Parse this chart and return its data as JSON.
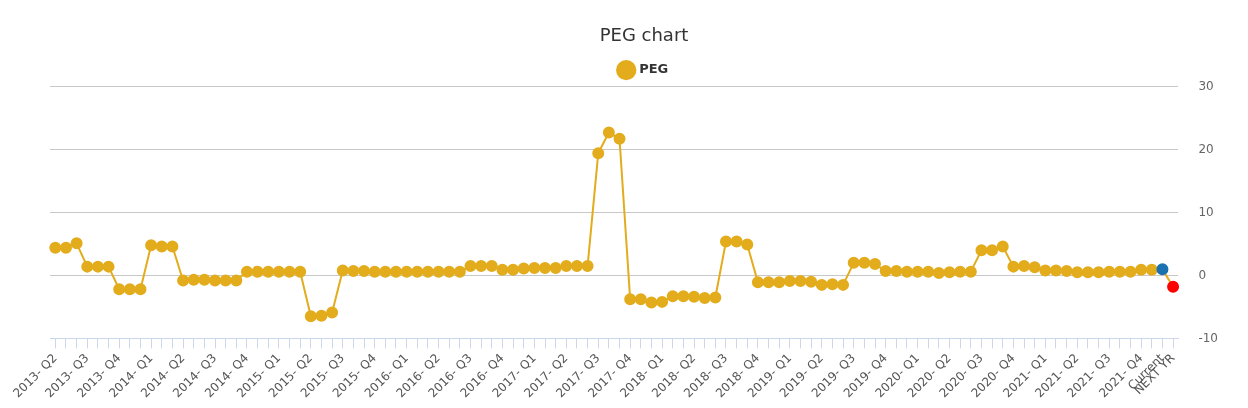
{
  "chart_data": {
    "type": "line",
    "title": "PEG chart",
    "categories": [
      "2013- Q2",
      null,
      null,
      "2013- Q3",
      null,
      null,
      "2013- Q4",
      null,
      null,
      "2014- Q1",
      null,
      null,
      "2014- Q2",
      null,
      null,
      "2014- Q3",
      null,
      null,
      "2014- Q4",
      null,
      null,
      "2015- Q1",
      null,
      null,
      "2015- Q2",
      null,
      null,
      "2015- Q3",
      null,
      null,
      "2015- Q4",
      null,
      null,
      "2016- Q1",
      null,
      null,
      "2016- Q2",
      null,
      null,
      "2016- Q3",
      null,
      null,
      "2016- Q4",
      null,
      null,
      "2017- Q1",
      null,
      null,
      "2017- Q2",
      null,
      null,
      "2017- Q3",
      null,
      null,
      "2017- Q4",
      null,
      null,
      "2018- Q1",
      null,
      null,
      "2018- Q2",
      null,
      null,
      "2018- Q3",
      null,
      null,
      "2018- Q4",
      null,
      null,
      "2019- Q1",
      null,
      null,
      "2019- Q2",
      null,
      null,
      "2019- Q3",
      null,
      null,
      "2019- Q4",
      null,
      null,
      "2020- Q1",
      null,
      null,
      "2020- Q2",
      null,
      null,
      "2020- Q3",
      null,
      null,
      "2020- Q4",
      null,
      null,
      "2021- Q1",
      null,
      null,
      "2021- Q2",
      null,
      null,
      "2021- Q3",
      null,
      null,
      "2021- Q4",
      null,
      "Current",
      "NEXT YR"
    ],
    "series": [
      {
        "name": "PEG",
        "color": "#e3ac1c",
        "values": [
          4.4,
          4.4,
          5.1,
          1.4,
          1.4,
          1.4,
          -2.2,
          -2.2,
          -2.2,
          4.8,
          4.6,
          4.6,
          -0.8,
          -0.7,
          -0.7,
          -0.8,
          -0.8,
          -0.8,
          0.6,
          0.6,
          0.6,
          0.6,
          0.6,
          0.6,
          -6.5,
          -6.4,
          -5.9,
          0.8,
          0.7,
          0.7,
          0.6,
          0.6,
          0.6,
          0.6,
          0.6,
          0.6,
          0.6,
          0.6,
          0.6,
          1.5,
          1.5,
          1.5,
          0.9,
          0.9,
          1.1,
          1.2,
          1.2,
          1.2,
          1.5,
          1.5,
          1.5,
          19.4,
          22.7,
          21.7,
          -3.8,
          -3.8,
          -4.3,
          -4.2,
          -3.3,
          -3.3,
          -3.4,
          -3.6,
          -3.5,
          5.4,
          5.4,
          4.9,
          -1.1,
          -1.1,
          -1.1,
          -0.9,
          -0.9,
          -1.0,
          -1.5,
          -1.4,
          -1.5,
          2.0,
          2.0,
          1.8,
          0.7,
          0.7,
          0.6,
          0.6,
          0.6,
          0.4,
          0.5,
          0.6,
          0.6,
          4.0,
          4.0,
          4.6,
          1.4,
          1.5,
          1.3,
          0.8,
          0.8,
          0.7,
          0.5,
          0.5,
          0.5,
          0.6,
          0.6,
          0.6,
          0.9,
          0.9,
          1.0,
          -1.8
        ],
        "colors": [
          "#e3ac1c",
          "#e3ac1c",
          "#e3ac1c",
          "#e3ac1c",
          "#e3ac1c",
          "#e3ac1c",
          "#e3ac1c",
          "#e3ac1c",
          "#e3ac1c",
          "#e3ac1c",
          "#e3ac1c",
          "#e3ac1c",
          "#e3ac1c",
          "#e3ac1c",
          "#e3ac1c",
          "#e3ac1c",
          "#e3ac1c",
          "#e3ac1c",
          "#e3ac1c",
          "#e3ac1c",
          "#e3ac1c",
          "#e3ac1c",
          "#e3ac1c",
          "#e3ac1c",
          "#e3ac1c",
          "#e3ac1c",
          "#e3ac1c",
          "#e3ac1c",
          "#e3ac1c",
          "#e3ac1c",
          "#e3ac1c",
          "#e3ac1c",
          "#e3ac1c",
          "#e3ac1c",
          "#e3ac1c",
          "#e3ac1c",
          "#e3ac1c",
          "#e3ac1c",
          "#e3ac1c",
          "#e3ac1c",
          "#e3ac1c",
          "#e3ac1c",
          "#e3ac1c",
          "#e3ac1c",
          "#e3ac1c",
          "#e3ac1c",
          "#e3ac1c",
          "#e3ac1c",
          "#e3ac1c",
          "#e3ac1c",
          "#e3ac1c",
          "#e3ac1c",
          "#e3ac1c",
          "#e3ac1c",
          "#e3ac1c",
          "#e3ac1c",
          "#e3ac1c",
          "#e3ac1c",
          "#e3ac1c",
          "#e3ac1c",
          "#e3ac1c",
          "#e3ac1c",
          "#e3ac1c",
          "#e3ac1c",
          "#e3ac1c",
          "#e3ac1c",
          "#e3ac1c",
          "#e3ac1c",
          "#e3ac1c",
          "#e3ac1c",
          "#e3ac1c",
          "#e3ac1c",
          "#e3ac1c",
          "#e3ac1c",
          "#e3ac1c",
          "#e3ac1c",
          "#e3ac1c",
          "#e3ac1c",
          "#e3ac1c",
          "#e3ac1c",
          "#e3ac1c",
          "#e3ac1c",
          "#e3ac1c",
          "#e3ac1c",
          "#e3ac1c",
          "#e3ac1c",
          "#e3ac1c",
          "#e3ac1c",
          "#e3ac1c",
          "#e3ac1c",
          "#e3ac1c",
          "#e3ac1c",
          "#e3ac1c",
          "#e3ac1c",
          "#e3ac1c",
          "#e3ac1c",
          "#e3ac1c",
          "#e3ac1c",
          "#e3ac1c",
          "#e3ac1c",
          "#e3ac1c",
          "#e3ac1c",
          "#e3ac1c",
          "#e3ac1c",
          "#1a72b0",
          "#ff0000"
        ]
      }
    ],
    "ylim": [
      -10,
      30
    ],
    "yticks": [
      -10,
      0,
      10,
      20,
      30
    ],
    "grid": "y",
    "legend": "top",
    "marker": "circle"
  }
}
